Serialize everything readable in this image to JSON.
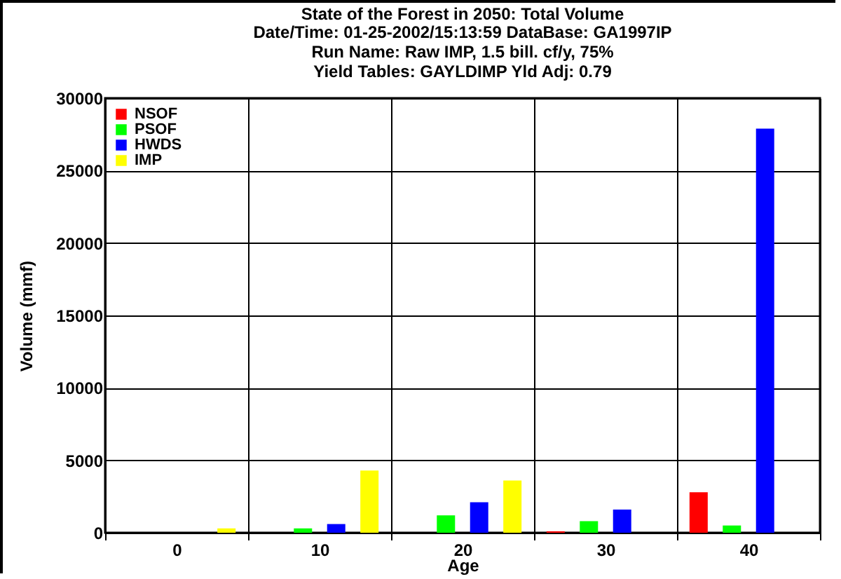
{
  "chart_data": {
    "type": "bar",
    "title": "State of the Forest in 2050: Total Volume",
    "subtitle": "Date/Time: 01-25-2002/15:13:59       DataBase: GA1997IP\nRun Name: Raw IMP, 1.5 bill. cf/y, 75%\nYield Tables: GAYLDIMP       Yld Adj: 0.79",
    "xlabel": "Age",
    "ylabel": "Volume (mmf)",
    "categories": [
      "0",
      "10",
      "20",
      "30",
      "40"
    ],
    "series": [
      {
        "name": "NSOF",
        "color": "#ff0000",
        "values": [
          0,
          0,
          0,
          100,
          2800
        ]
      },
      {
        "name": "PSOF",
        "color": "#00ff00",
        "values": [
          0,
          300,
          1200,
          800,
          500
        ]
      },
      {
        "name": "HWDS",
        "color": "#0000ff",
        "values": [
          0,
          600,
          2100,
          1600,
          27900
        ]
      },
      {
        "name": "IMP",
        "color": "#ffff00",
        "values": [
          300,
          4300,
          3600,
          0,
          0
        ]
      }
    ],
    "ylim": [
      0,
      30000
    ],
    "yticks": [
      0,
      5000,
      10000,
      15000,
      20000,
      25000,
      30000
    ],
    "grid": true,
    "legend": "top left"
  }
}
